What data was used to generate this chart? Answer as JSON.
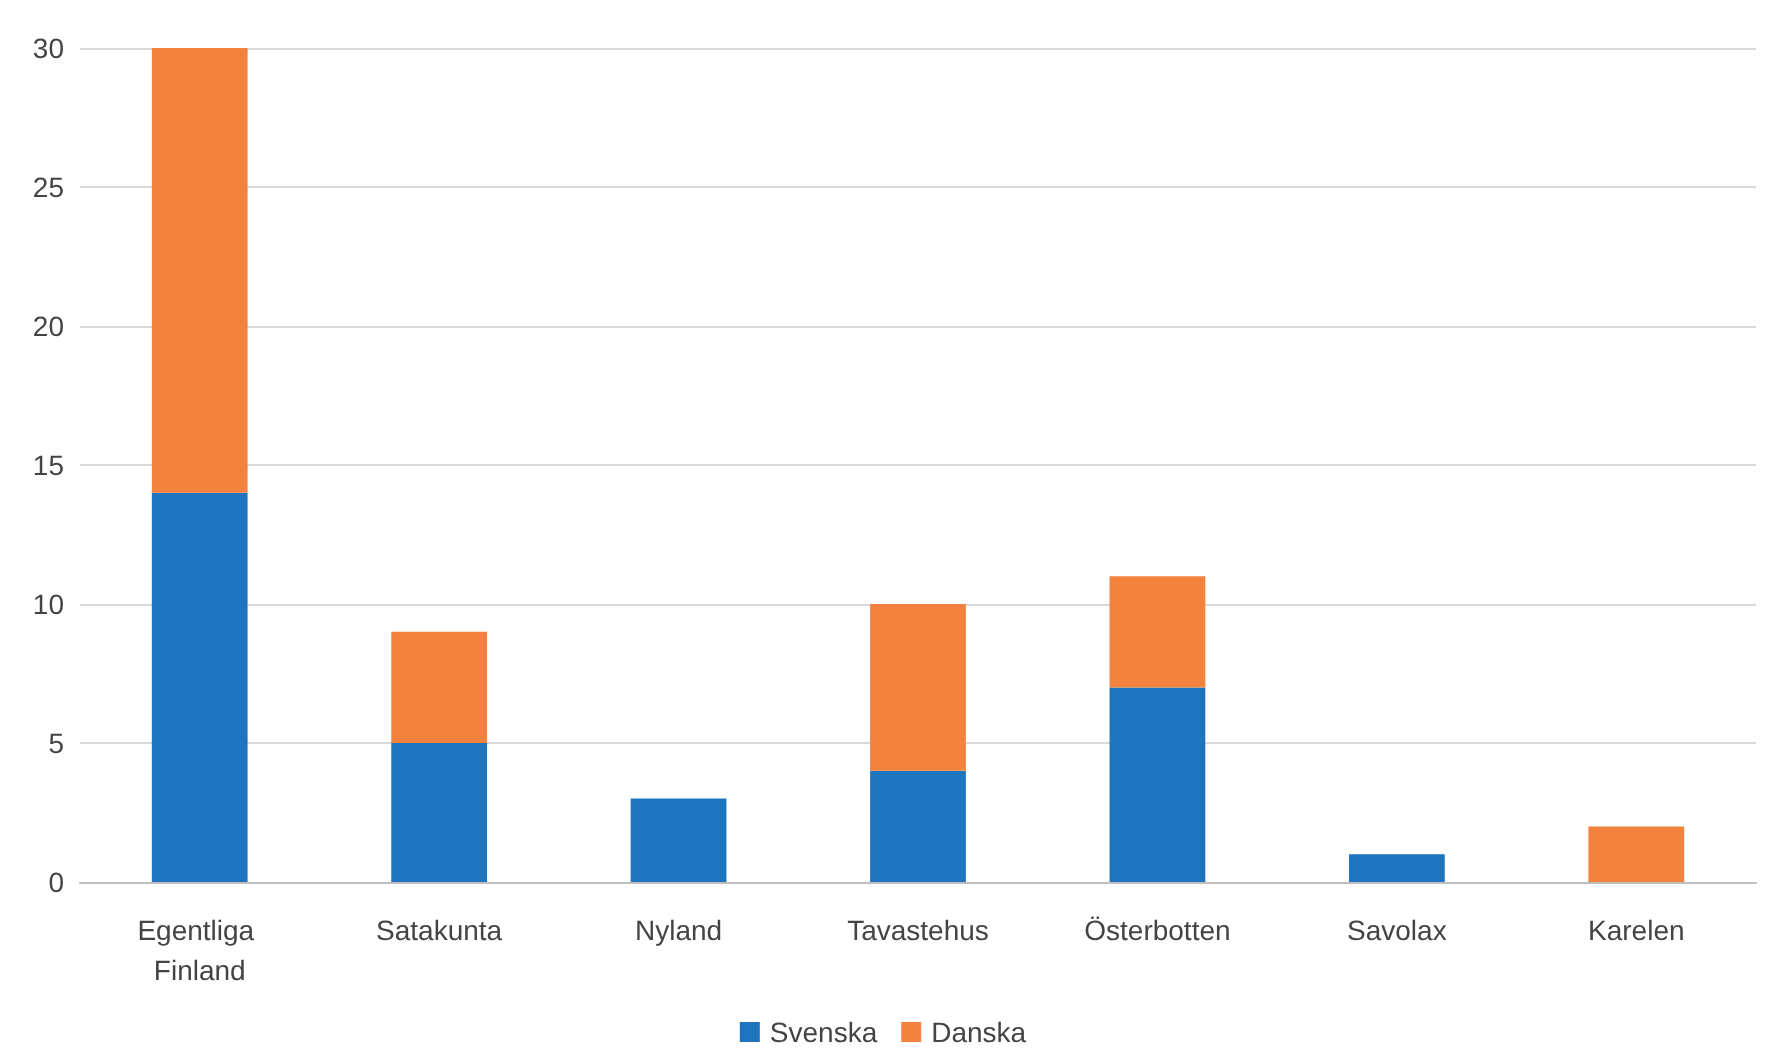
{
  "chart_data": {
    "type": "bar",
    "stacked": true,
    "categories": [
      "Egentliga Finland",
      "Satakunta",
      "Nyland",
      "Tavastehus",
      "Österbotten",
      "Savolax",
      "Karelen"
    ],
    "series": [
      {
        "name": "Svenska",
        "color": "#1f74c0",
        "values": [
          14,
          5,
          3,
          4,
          7,
          1,
          0
        ]
      },
      {
        "name": "Danska",
        "color": "#f3823f",
        "values": [
          16,
          4,
          0,
          6,
          4,
          0,
          2
        ]
      }
    ],
    "ylim": [
      0,
      30
    ],
    "yticks": [
      0,
      5,
      10,
      15,
      20,
      25,
      30
    ],
    "grid": "y",
    "legend": "bottom"
  }
}
